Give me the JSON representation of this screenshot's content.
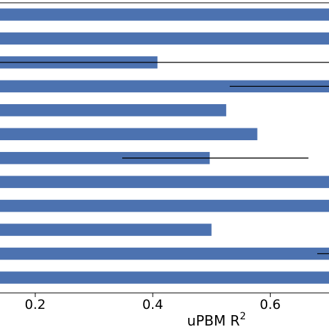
{
  "chart_data": {
    "type": "bar",
    "orientation": "horizontal",
    "title": "",
    "xlabel": "uPBM R",
    "xlabel_superscript": "2",
    "ylabel": "",
    "xlim": [
      0.14,
      0.7
    ],
    "xticks": [
      {
        "value": 0.2,
        "label": "0.2"
      },
      {
        "value": 0.4,
        "label": "0.4"
      },
      {
        "value": 0.6,
        "label": "0.6"
      }
    ],
    "bar_color": "#4c72b0",
    "errorbar_color": "#000000",
    "grid": false,
    "legend": "none",
    "bars": [
      {
        "value": 0.7,
        "err_low": null,
        "err_high": null
      },
      {
        "value": 0.7,
        "err_low": null,
        "err_high": null
      },
      {
        "value": 0.408,
        "err_low": 0.14,
        "err_high": 0.7
      },
      {
        "value": 0.7,
        "err_low": 0.531,
        "err_high": 0.7
      },
      {
        "value": 0.525,
        "err_low": null,
        "err_high": null
      },
      {
        "value": 0.578,
        "err_low": null,
        "err_high": null
      },
      {
        "value": 0.497,
        "err_low": 0.348,
        "err_high": 0.665
      },
      {
        "value": 0.7,
        "err_low": null,
        "err_high": null
      },
      {
        "value": 0.7,
        "err_low": null,
        "err_high": null
      },
      {
        "value": 0.5,
        "err_low": null,
        "err_high": null
      },
      {
        "value": 0.7,
        "err_low": 0.68,
        "err_high": 0.7
      },
      {
        "value": 0.7,
        "err_low": null,
        "err_high": null
      }
    ]
  }
}
